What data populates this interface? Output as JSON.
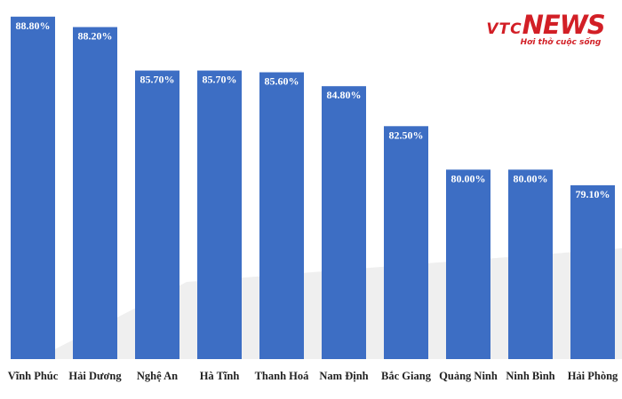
{
  "watermark": {
    "brand_a": "VTC",
    "brand_b": "NEWS",
    "tagline": "Hơi thở cuộc sống",
    "brand_color": "#d21f26"
  },
  "chart_data": {
    "type": "bar",
    "categories": [
      "Vĩnh Phúc",
      "Hải Dương",
      "Nghệ An",
      "Hà Tĩnh",
      "Thanh Hoá",
      "Nam Định",
      "Bắc Giang",
      "Quảng Ninh",
      "Ninh Bình",
      "Hải Phòng"
    ],
    "values": [
      88.8,
      88.2,
      85.7,
      85.7,
      85.6,
      84.8,
      82.5,
      80.0,
      80.0,
      79.1
    ],
    "value_labels": [
      "88.80%",
      "88.20%",
      "85.70%",
      "85.70%",
      "85.60%",
      "84.80%",
      "82.50%",
      "80.00%",
      "80.00%",
      "79.10%"
    ],
    "bar_color": "#3d6ec4",
    "ylim": [
      69.1,
      89.35
    ],
    "grid": false,
    "legend": "none",
    "title": "",
    "xlabel": "",
    "ylabel": ""
  }
}
